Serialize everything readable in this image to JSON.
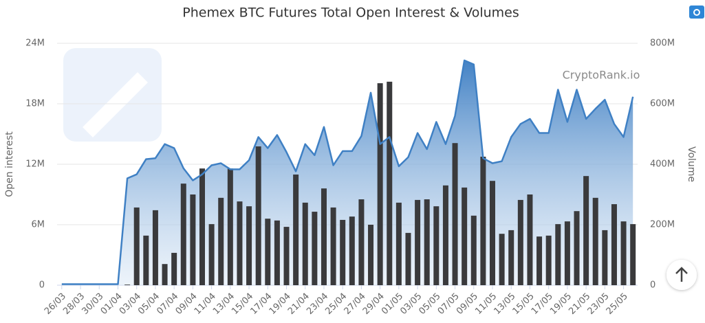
{
  "chart_data": {
    "type": "bar",
    "title": "Phemex BTC Futures Total Open Interest & Volumes",
    "watermark": "CryptoRank.io",
    "y_label": "Open interest",
    "y2_label": "Volume",
    "categories": [
      "26/03",
      null,
      "28/03",
      null,
      "30/03",
      null,
      "01/04",
      null,
      "03/04",
      null,
      "05/04",
      null,
      "07/04",
      null,
      "09/04",
      null,
      "11/04",
      null,
      "13/04",
      null,
      "15/04",
      null,
      "17/04",
      null,
      "19/04",
      null,
      "21/04",
      null,
      "23/04",
      null,
      "25/04",
      null,
      "27/04",
      null,
      "29/04",
      null,
      "01/05",
      null,
      "03/05",
      null,
      "05/05",
      null,
      "07/05",
      null,
      "09/05",
      null,
      "11/05",
      null,
      "13/05",
      null,
      "15/05",
      null,
      "17/05",
      null,
      "19/05",
      null,
      "21/05",
      null,
      "23/05",
      null,
      "25/05",
      null
    ],
    "ylim": [
      0,
      24000000
    ],
    "yticks": [
      0,
      {
        "value": 6000000,
        "label": "6M"
      },
      {
        "value": 12000000,
        "label": "12M"
      },
      {
        "value": 18000000,
        "label": "18M"
      },
      {
        "value": 24000000,
        "label": "24M"
      }
    ],
    "y2lim": [
      0,
      800000000
    ],
    "y2ticks": [
      0,
      {
        "value": 200000000,
        "label": "200M"
      },
      {
        "value": 400000000,
        "label": "400M"
      },
      {
        "value": 600000000,
        "label": "600M"
      },
      {
        "value": 800000000,
        "label": "800M"
      }
    ],
    "grid": true,
    "series": [
      {
        "type": "area",
        "color": "#3f80c4",
        "values": [
          100000,
          100000,
          100000,
          100000,
          100000,
          100000,
          100000,
          10600000,
          11000000,
          12500000,
          12600000,
          14000000,
          13600000,
          11600000,
          10400000,
          11000000,
          11900000,
          12100000,
          11500000,
          11500000,
          12400000,
          14700000,
          13600000,
          14900000,
          13200000,
          11300000,
          14000000,
          12900000,
          15700000,
          11900000,
          13300000,
          13300000,
          14800000,
          19100000,
          14000000,
          14700000,
          11800000,
          12700000,
          15100000,
          13500000,
          16200000,
          14000000,
          16800000,
          22300000,
          21900000,
          12600000,
          12100000,
          12300000,
          14700000,
          16000000,
          16500000,
          15100000,
          15100000,
          19400000,
          16200000,
          19400000,
          16500000,
          17500000,
          18400000,
          16000000,
          14700000,
          18700000
        ]
      },
      {
        "type": "bar",
        "axis": "y2",
        "color": "#3a3a3c",
        "values": [
          0,
          0,
          0,
          0,
          0,
          0,
          0,
          2000000,
          257000000,
          164000000,
          248000000,
          70000000,
          107000000,
          336000000,
          300000000,
          386000000,
          202000000,
          289000000,
          386000000,
          277000000,
          261000000,
          459000000,
          220000000,
          214000000,
          193000000,
          366000000,
          273000000,
          243000000,
          320000000,
          257000000,
          216000000,
          227000000,
          284000000,
          200000000,
          668000000,
          673000000,
          273000000,
          173000000,
          282000000,
          284000000,
          261000000,
          330000000,
          470000000,
          323000000,
          230000000,
          425000000,
          345000000,
          170000000,
          182000000,
          282000000,
          300000000,
          161000000,
          164000000,
          202000000,
          211000000,
          245000000,
          361000000,
          289000000,
          182000000,
          268000000,
          211000000,
          202000000
        ]
      }
    ]
  }
}
